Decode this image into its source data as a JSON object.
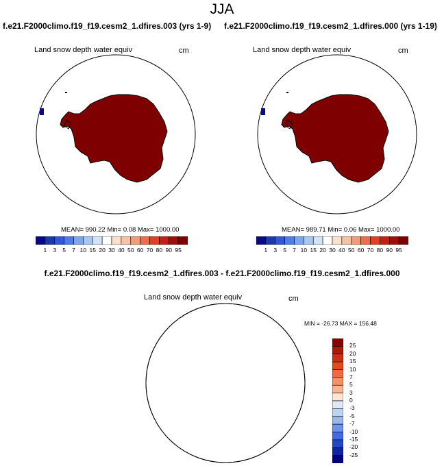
{
  "main_title": "JJA",
  "panels": [
    {
      "run": "f.e21.F2000climo.f19_f19.cesm2_1.dfires.003 (yrs 1-9)",
      "variable": "Land snow depth water equiv",
      "units": "cm",
      "stats": "MEAN= 990.22  Min=   0.08  Max= 1000.00"
    },
    {
      "run": "f.e21.F2000climo.f19_f19.cesm2_1.dfires.000 (yrs 1-19)",
      "variable": "Land snow depth water equiv",
      "units": "cm",
      "stats": "MEAN= 989.71  Min=   0.06  Max= 1000.00"
    }
  ],
  "top_colorbar": {
    "labels": [
      "1",
      "3",
      "5",
      "7",
      "10",
      "15",
      "20",
      "30",
      "40",
      "50",
      "60",
      "70",
      "80",
      "90",
      "95"
    ],
    "colors": [
      "#08088a",
      "#1a3aa8",
      "#2f57d6",
      "#4f7de8",
      "#7ea6ee",
      "#a9c6f2",
      "#d2e2f7",
      "#ffffff",
      "#fbe0cc",
      "#f8c2a2",
      "#f59a73",
      "#f06c46",
      "#e4401f",
      "#c51f0e",
      "#a00d05",
      "#7f0000"
    ]
  },
  "difference": {
    "title": "f.e21.F2000climo.f19_f19.cesm2_1.dfires.003 - f.e21.F2000climo.f19_f19.cesm2_1.dfires.000",
    "variable": "Land snow depth water equiv",
    "units": "cm",
    "minmax": "MIN = -26.73 MAX = 156.48",
    "colorbar_labels": [
      "25",
      "20",
      "15",
      "10",
      "7",
      "5",
      "3",
      "0",
      "-3",
      "-5",
      "-7",
      "-10",
      "-15",
      "-20",
      "-25"
    ],
    "colorbar_colors": [
      "#8b0000",
      "#b01800",
      "#cc3010",
      "#e24a1e",
      "#f06a3e",
      "#f79062",
      "#fbb48e",
      "#fde6d2",
      "#dde9f6",
      "#bcd3f0",
      "#98b8ec",
      "#6c94ea",
      "#3e6ce6",
      "#2446c8",
      "#0f24a4",
      "#00007f"
    ],
    "land_tint": "#fde6d2",
    "ocean_tint": "#dde9f6"
  },
  "map_colors": {
    "antarctica": "#7f0000",
    "outline": "#000000",
    "blue_patch": "#0a0a8a"
  }
}
